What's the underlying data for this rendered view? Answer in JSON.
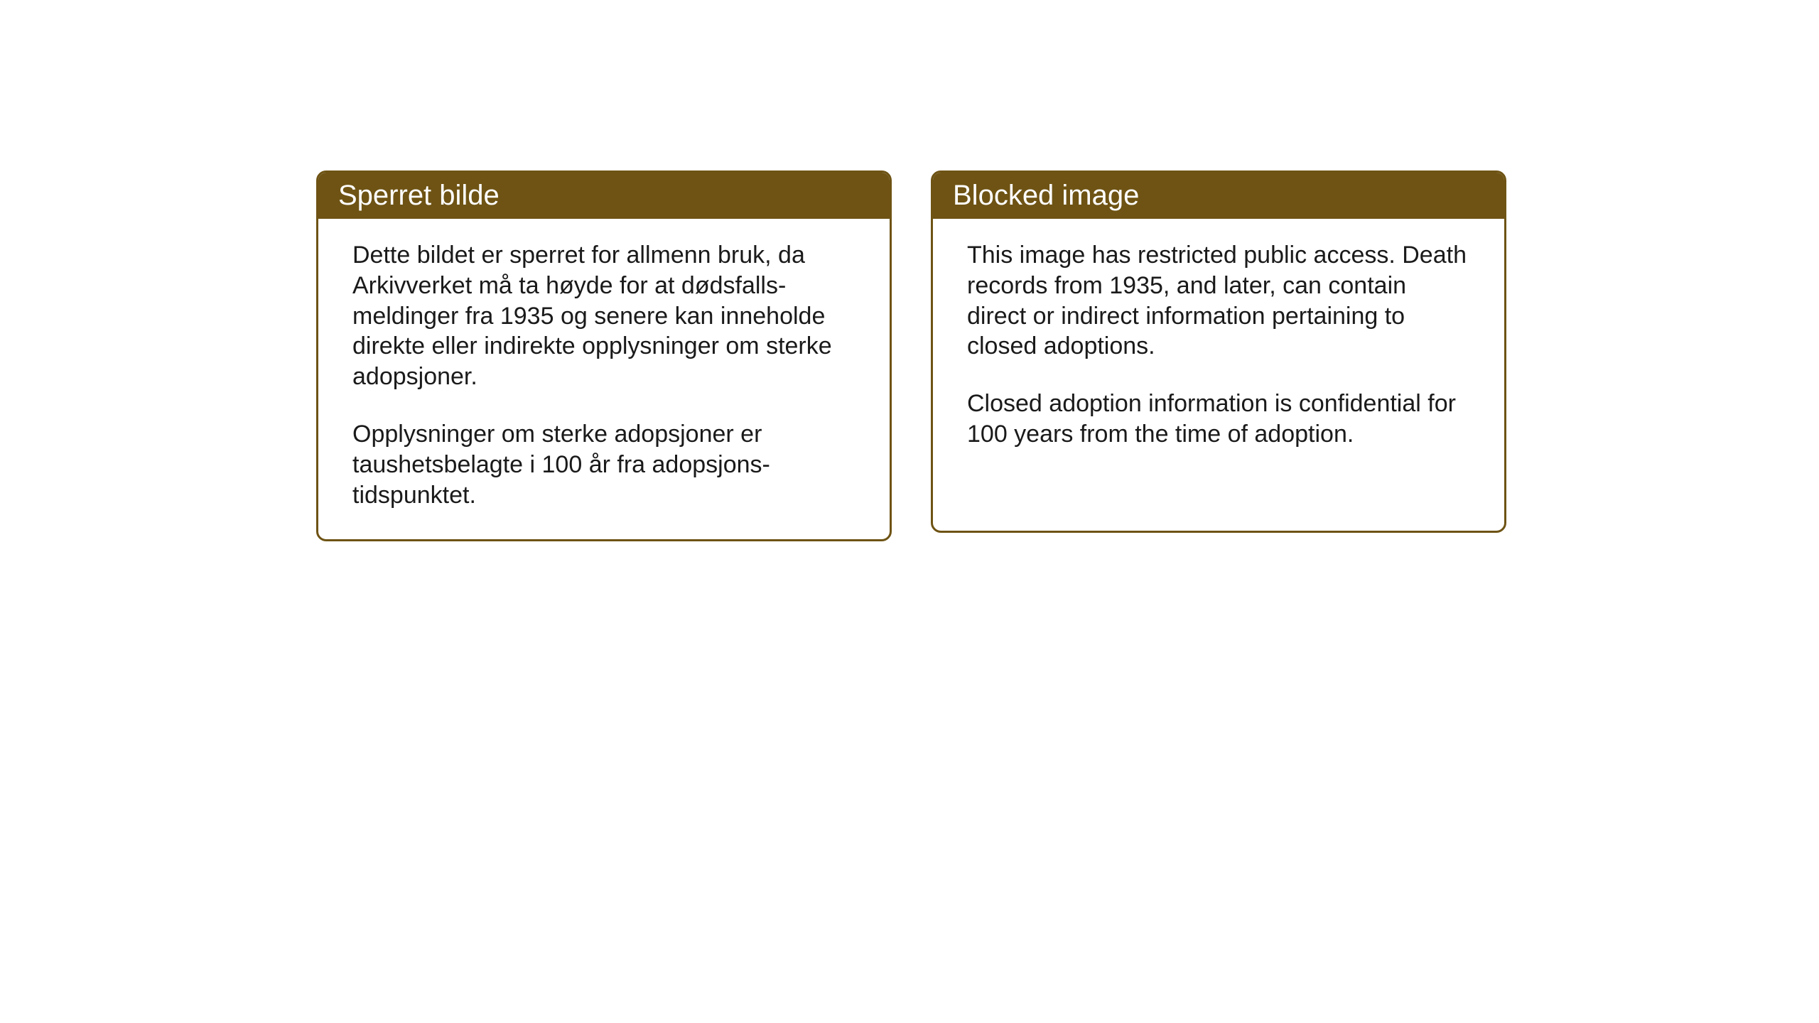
{
  "layout": {
    "background_color": "#ffffff",
    "box_border_color": "#6e5314",
    "box_border_radius": 14,
    "header_background_color": "#6e5314",
    "header_text_color": "#ffffff",
    "body_text_color": "#1a1a1a",
    "header_font_size": 40,
    "body_font_size": 34
  },
  "notices": {
    "norwegian": {
      "title": "Sperret bilde",
      "paragraph1": "Dette bildet er sperret for allmenn bruk, da Arkivverket må ta høyde for at dødsfalls-meldinger fra 1935 og senere kan inneholde direkte eller indirekte opplysninger om sterke adopsjoner.",
      "paragraph2": "Opplysninger om sterke adopsjoner er taushetsbelagte i 100 år fra adopsjons-tidspunktet."
    },
    "english": {
      "title": "Blocked image",
      "paragraph1": "This image has restricted public access. Death records from 1935, and later, can contain direct or indirect information pertaining to closed adoptions.",
      "paragraph2": "Closed adoption information is confidential for 100 years from the time of adoption."
    }
  }
}
